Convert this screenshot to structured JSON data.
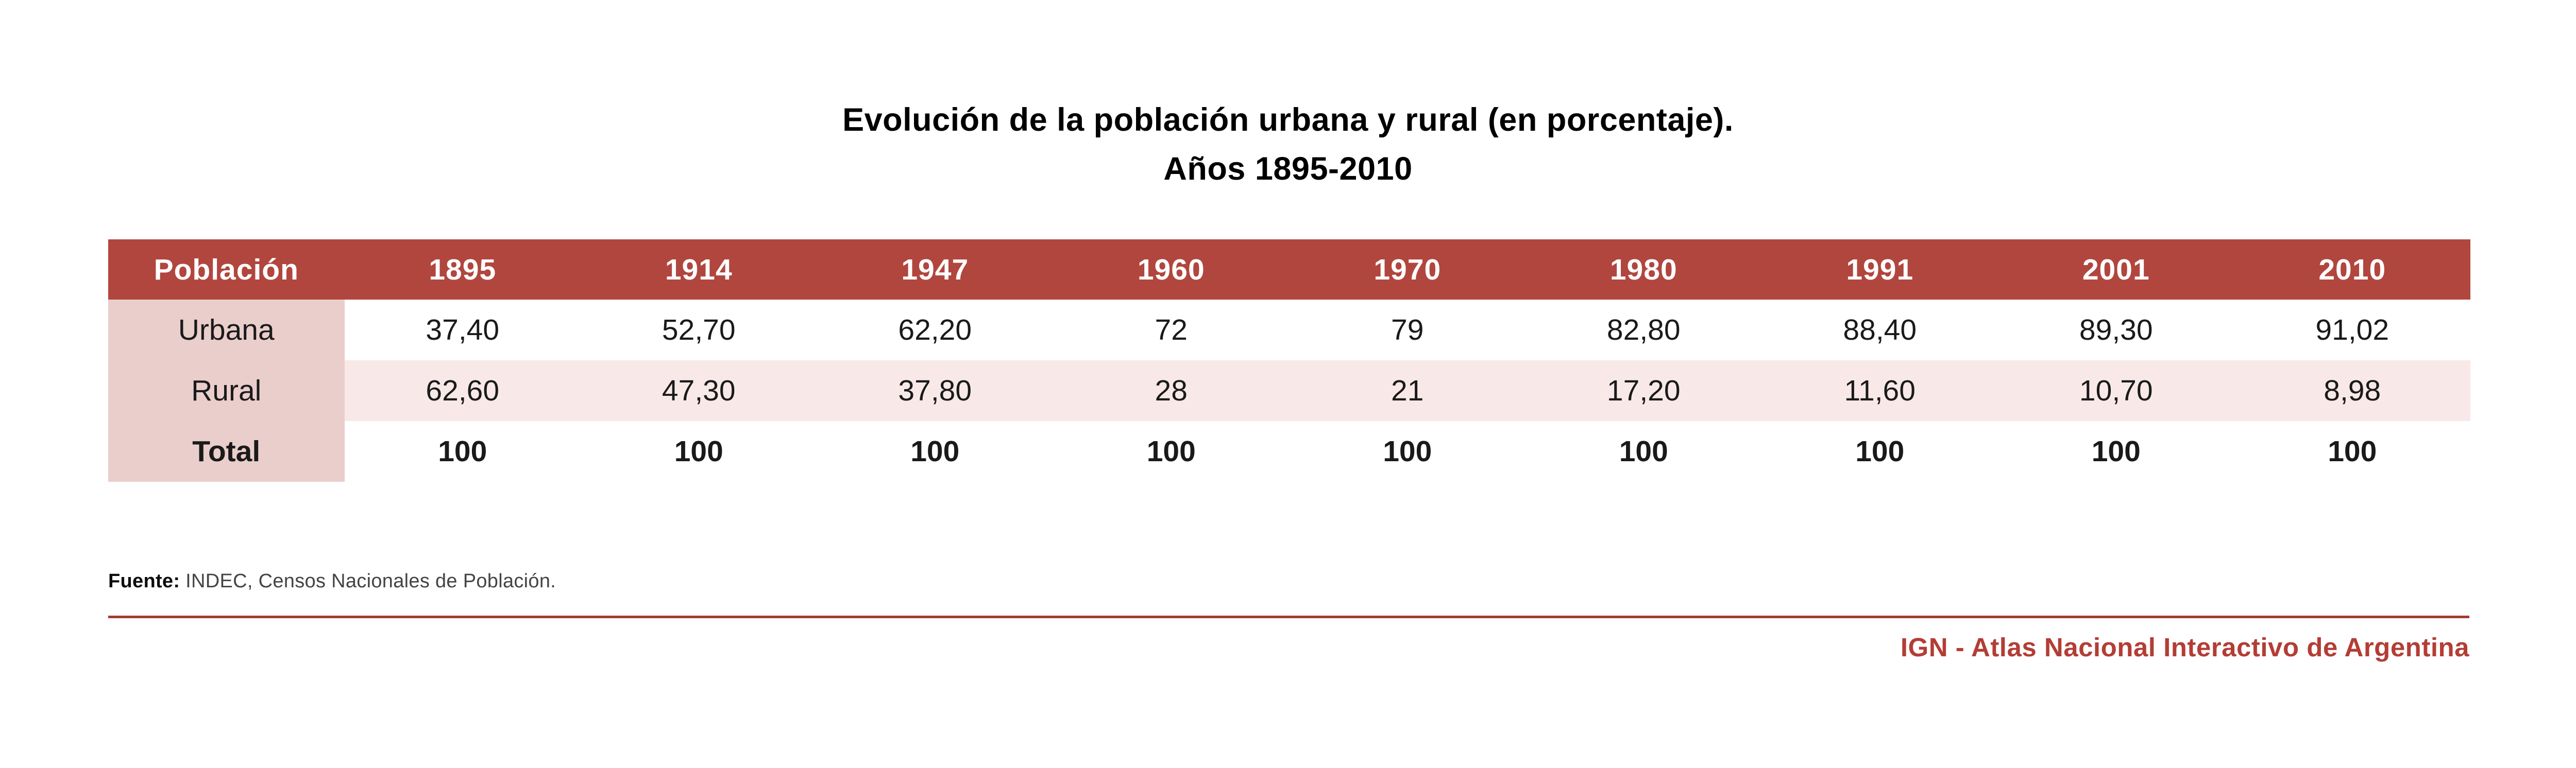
{
  "title": {
    "line1": "Evolución de la población urbana y rural (en porcentaje).",
    "line2": "Años 1895-2010"
  },
  "table": {
    "header": [
      "Población",
      "1895",
      "1914",
      "1947",
      "1960",
      "1970",
      "1980",
      "1991",
      "2001",
      "2010"
    ],
    "rows": [
      {
        "label": "Urbana",
        "values": [
          "37,40",
          "52,70",
          "62,20",
          "72",
          "79",
          "82,80",
          "88,40",
          "89,30",
          "91,02"
        ],
        "alt": false,
        "bold": false
      },
      {
        "label": "Rural",
        "values": [
          "62,60",
          "47,30",
          "37,80",
          "28",
          "21",
          "17,20",
          "11,60",
          "10,70",
          "8,98"
        ],
        "alt": true,
        "bold": false
      },
      {
        "label": "Total",
        "values": [
          "100",
          "100",
          "100",
          "100",
          "100",
          "100",
          "100",
          "100",
          "100"
        ],
        "alt": false,
        "bold": true
      }
    ]
  },
  "source": {
    "label": "Fuente:",
    "text": " INDEC, Censos Nacionales de Población."
  },
  "footer": {
    "credit": "IGN - Atlas Nacional Interactivo de Argentina"
  },
  "colors": {
    "header_bg": "#b1463e",
    "label_column_bg": "#eacecb",
    "alt_row_bg": "#f8e9e8",
    "rule": "#a43a33",
    "credit_text": "#b33d35"
  },
  "chart_data": {
    "type": "table",
    "title": "Evolución de la población urbana y rural (en porcentaje). Años 1895-2010",
    "categories": [
      1895,
      1914,
      1947,
      1960,
      1970,
      1980,
      1991,
      2001,
      2010
    ],
    "series": [
      {
        "name": "Urbana",
        "values": [
          37.4,
          52.7,
          62.2,
          72,
          79,
          82.8,
          88.4,
          89.3,
          91.02
        ]
      },
      {
        "name": "Rural",
        "values": [
          62.6,
          47.3,
          37.8,
          28,
          21,
          17.2,
          11.6,
          10.7,
          8.98
        ]
      },
      {
        "name": "Total",
        "values": [
          100,
          100,
          100,
          100,
          100,
          100,
          100,
          100,
          100
        ]
      }
    ],
    "units": "percent",
    "source": "Fuente: INDEC, Censos Nacionales de Población.",
    "credit": "IGN - Atlas Nacional Interactivo de Argentina"
  }
}
